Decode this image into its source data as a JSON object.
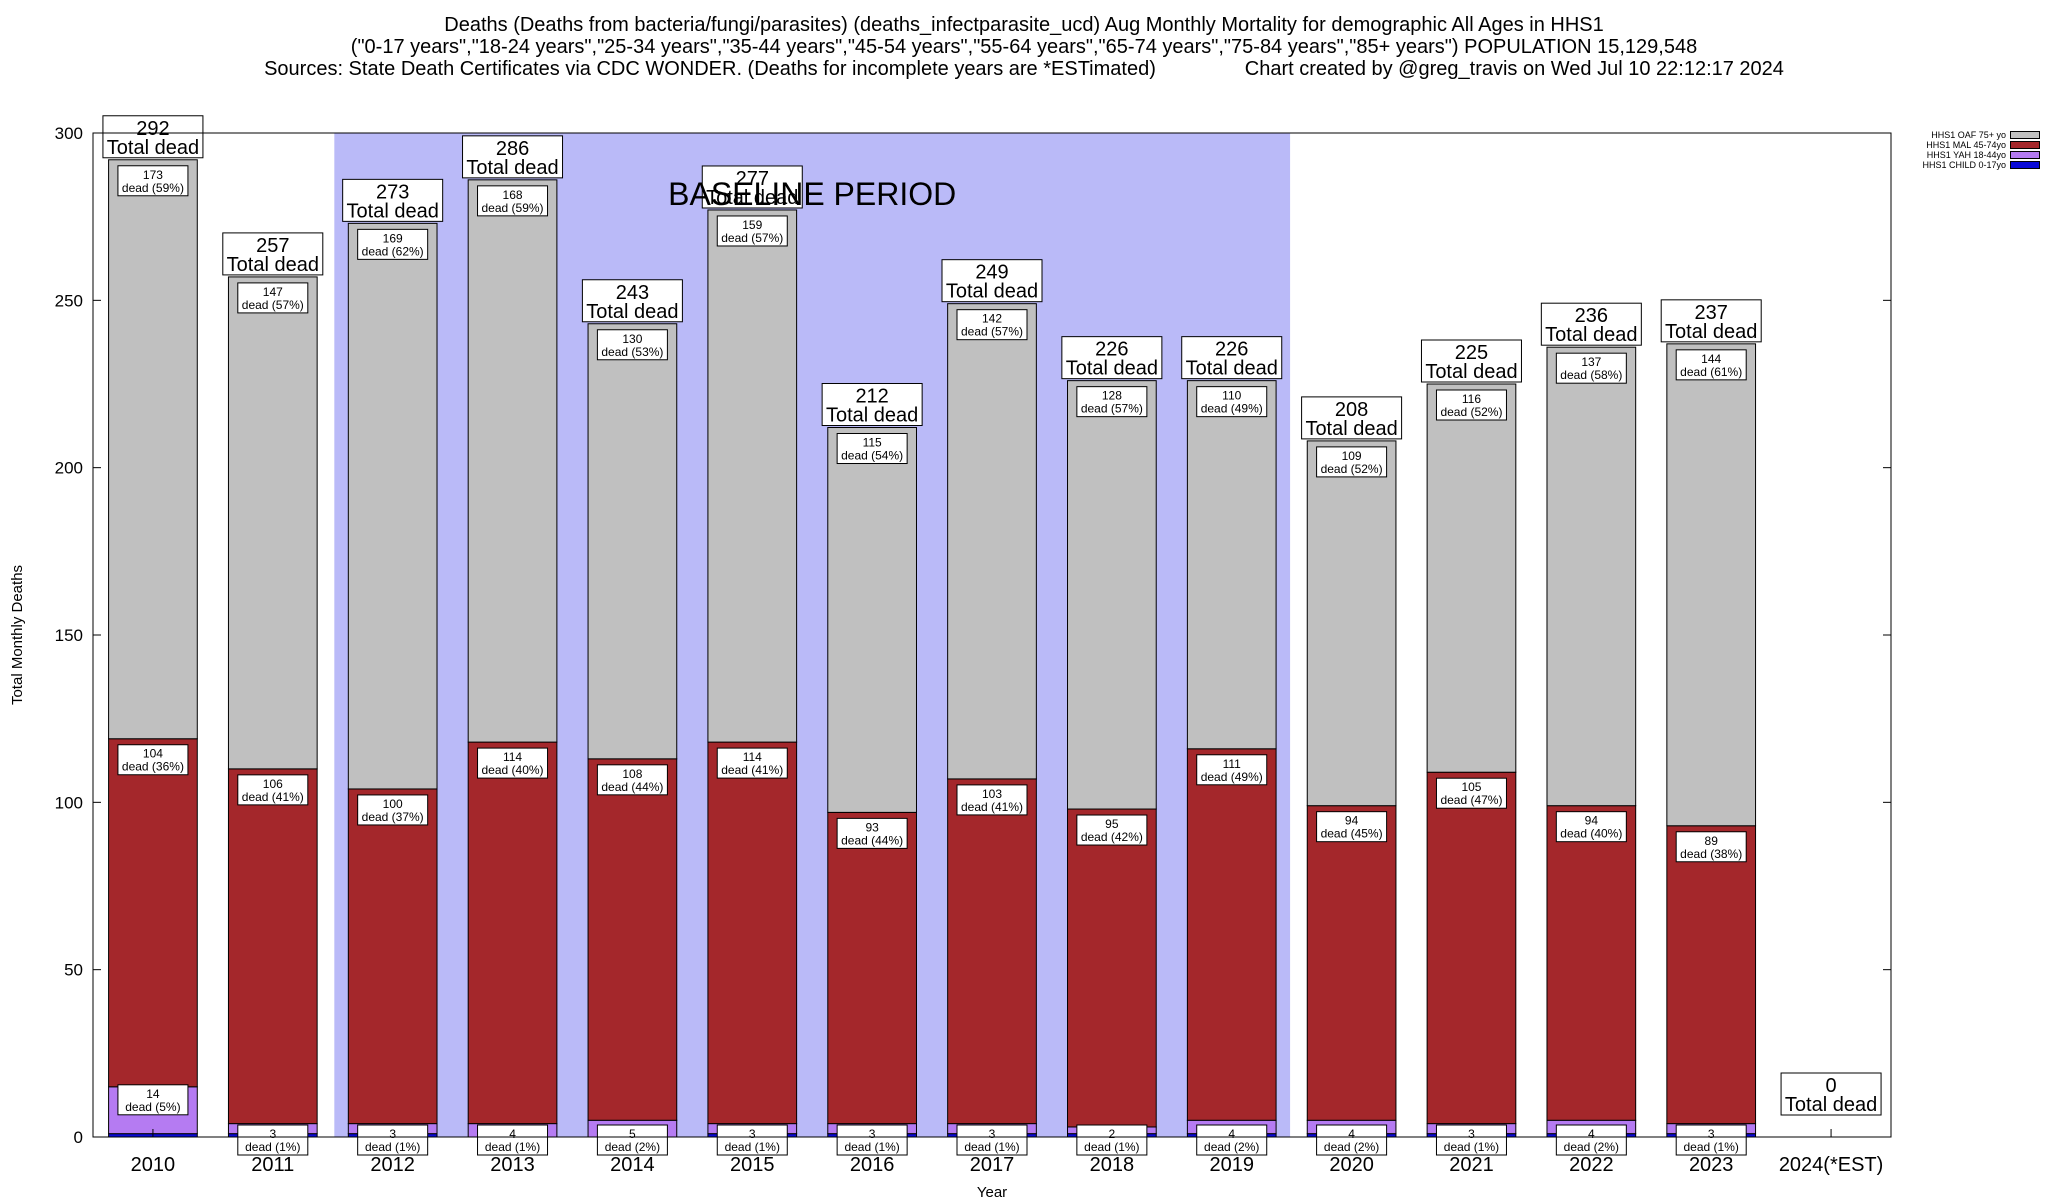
{
  "header": {
    "line1": "Deaths (Deaths from bacteria/fungi/parasites) (deaths_infectparasite_ucd) Aug Monthly Mortality for demographic All Ages in HHS1",
    "line2": "(\"0-17 years\",\"18-24 years\",\"25-34 years\",\"35-44 years\",\"45-54 years\",\"55-64 years\",\"65-74 years\",\"75-84 years\",\"85+ years\") POPULATION 15,129,548",
    "line3": "Sources: State Death Certificates via CDC WONDER. (Deaths for incomplete years are *ESTimated)                Chart created by @greg_travis on Wed Jul 10 22:12:17 2024"
  },
  "chart_data": {
    "type": "bar",
    "stacked": true,
    "ylabel": "Total Monthly Deaths",
    "xlabel": "Year",
    "ylim": [
      0,
      300
    ],
    "yticks": [
      0,
      50,
      100,
      150,
      200,
      250,
      300
    ],
    "baseline_label": "BASELINE PERIOD",
    "baseline_range": [
      "2012",
      "2019"
    ],
    "total_suffix": "Total dead",
    "dead_word": "dead",
    "categories": [
      "2010",
      "2011",
      "2012",
      "2013",
      "2014",
      "2015",
      "2016",
      "2017",
      "2018",
      "2019",
      "2020",
      "2021",
      "2022",
      "2023",
      "2024(*EST)"
    ],
    "totals": [
      292,
      257,
      273,
      286,
      243,
      277,
      212,
      249,
      226,
      226,
      208,
      225,
      236,
      237,
      0
    ],
    "series": [
      {
        "name": "HHS1 CHILD 0-17yo",
        "color": "#0a0ad6",
        "values": [
          1,
          1,
          1,
          0,
          0,
          1,
          1,
          1,
          1,
          1,
          1,
          1,
          1,
          1,
          0
        ],
        "labels": [
          null,
          null,
          null,
          null,
          null,
          null,
          null,
          null,
          null,
          null,
          null,
          null,
          null,
          null,
          null
        ]
      },
      {
        "name": "HHS1 YAH 18-44yo",
        "color": "#b57bf2",
        "values": [
          14,
          3,
          3,
          4,
          5,
          3,
          3,
          3,
          2,
          4,
          4,
          3,
          4,
          3,
          0
        ],
        "labels": [
          "(5%)",
          "(1%)",
          "(1%)",
          "(1%)",
          "(2%)",
          "(1%)",
          "(1%)",
          "(1%)",
          "(1%)",
          "(2%)",
          "(2%)",
          "(1%)",
          "(2%)",
          "(1%)",
          null
        ]
      },
      {
        "name": "HHS1 MAL 45-74yo",
        "color": "#a4272b",
        "values": [
          104,
          106,
          100,
          114,
          108,
          114,
          93,
          103,
          95,
          111,
          94,
          105,
          94,
          89,
          0
        ],
        "labels": [
          "(36%)",
          "(41%)",
          "(37%)",
          "(40%)",
          "(44%)",
          "(41%)",
          "(44%)",
          "(41%)",
          "(42%)",
          "(49%)",
          "(45%)",
          "(47%)",
          "(40%)",
          "(38%)",
          null
        ]
      },
      {
        "name": "HHS1 OAF 75+ yo",
        "color": "#c0c0c0",
        "values": [
          173,
          147,
          169,
          168,
          130,
          159,
          115,
          142,
          128,
          110,
          109,
          116,
          137,
          144,
          0
        ],
        "labels": [
          "(59%)",
          "(57%)",
          "(62%)",
          "(59%)",
          "(53%)",
          "(57%)",
          "(54%)",
          "(57%)",
          "(57%)",
          "(49%)",
          "(52%)",
          "(52%)",
          "(58%)",
          "(61%)",
          null
        ]
      }
    ],
    "colors": {
      "baseline_band": "#babaf8",
      "plot_bg": "#ffffff"
    }
  }
}
